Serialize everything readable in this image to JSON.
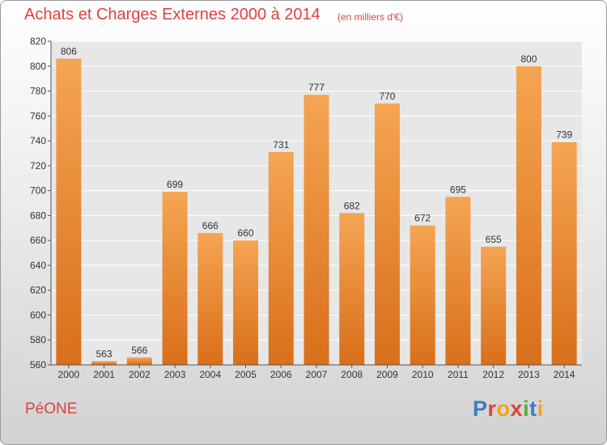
{
  "header": {
    "title": "Achats et Charges Externes 2000 à 2014",
    "subtitle": "(en milliers d'€)"
  },
  "footer": {
    "commune": "PéONE",
    "brand": "Proxiti"
  },
  "colors": {
    "title": "#e0413d",
    "bar_top": "#f5a553",
    "bar_bottom": "#d96f1a",
    "grid": "#ffffff",
    "axis": "#555555",
    "logo_letters": [
      "#3b7dc4",
      "#e0413d",
      "#f0a21f",
      "#e0413d",
      "#5aab3a",
      "#3b7dc4",
      "#f0a21f"
    ]
  },
  "chart_data": {
    "type": "bar",
    "categories": [
      "2000",
      "2001",
      "2002",
      "2003",
      "2004",
      "2005",
      "2006",
      "2007",
      "2008",
      "2009",
      "2010",
      "2011",
      "2012",
      "2013",
      "2014"
    ],
    "values": [
      806,
      563,
      566,
      699,
      666,
      660,
      731,
      777,
      682,
      770,
      672,
      695,
      655,
      800,
      739
    ],
    "title": "Achats et Charges Externes 2000 à 2014",
    "ylim": [
      560,
      820
    ],
    "yticks": [
      560,
      580,
      600,
      620,
      640,
      660,
      680,
      700,
      720,
      740,
      760,
      780,
      800,
      820
    ],
    "grid": true
  }
}
